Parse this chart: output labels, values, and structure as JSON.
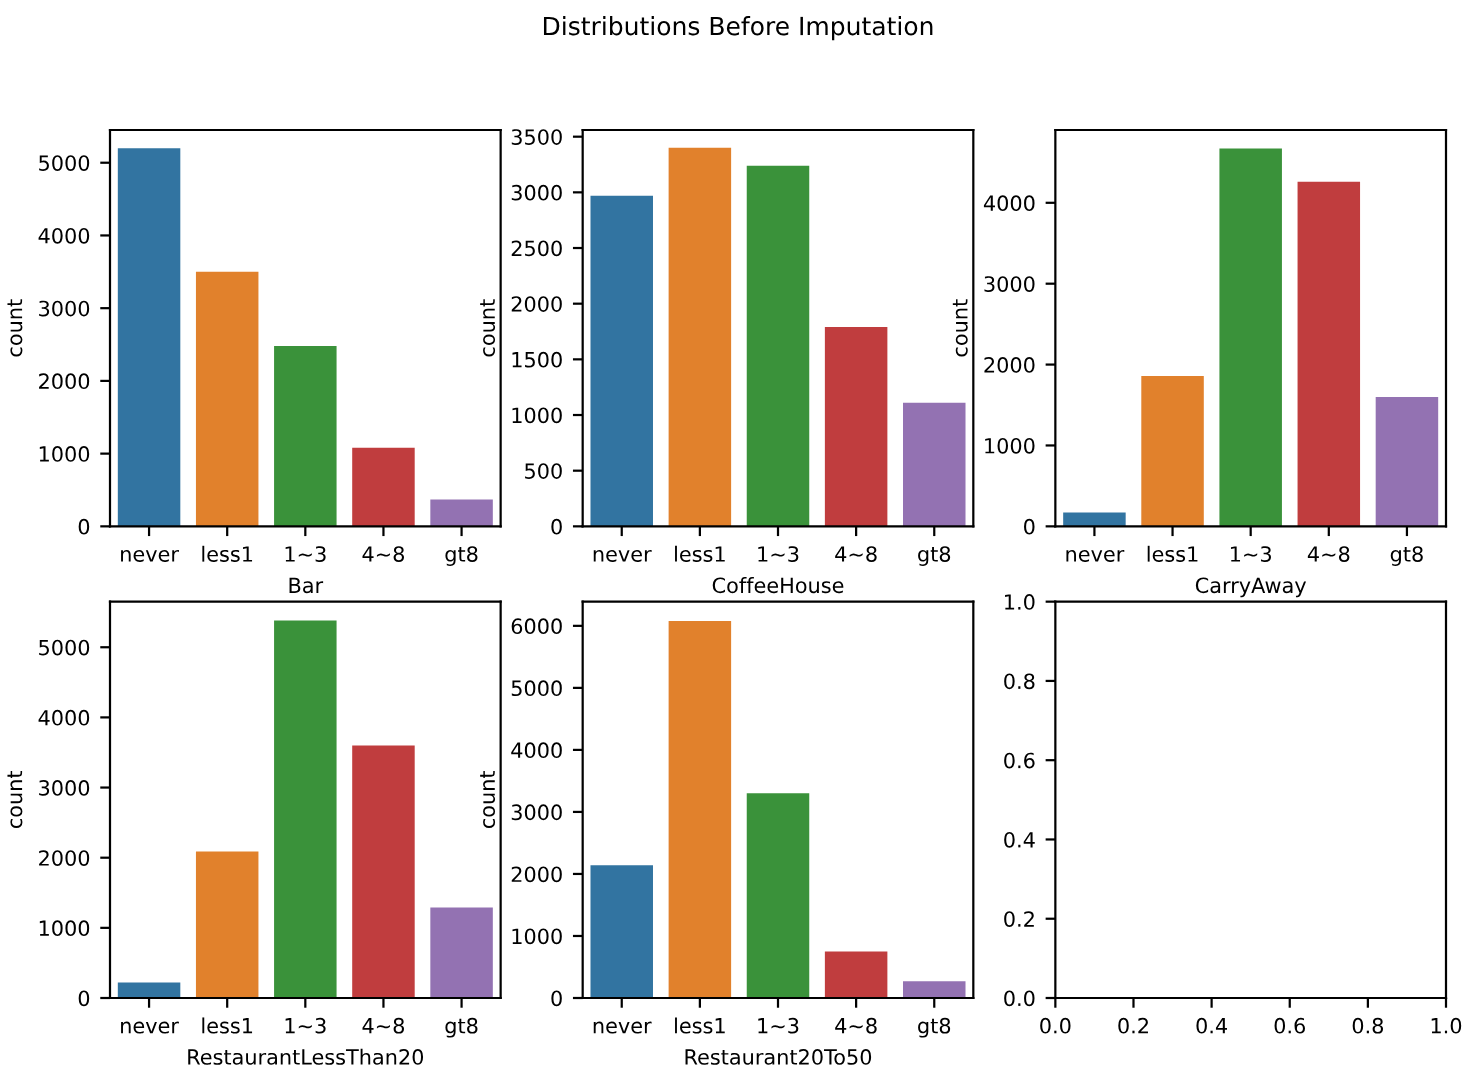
{
  "chart_data": [
    {
      "type": "bar",
      "xlabel": "Bar",
      "ylabel": "count",
      "categories": [
        "never",
        "less1",
        "1~3",
        "4~8",
        "gt8"
      ],
      "values": [
        5200,
        3500,
        2480,
        1080,
        370
      ],
      "colors": [
        "#3274a1",
        "#e1812c",
        "#3a923a",
        "#c03d3e",
        "#9372b2"
      ],
      "ylim": [
        0,
        5450
      ],
      "yticks": [
        0,
        1000,
        2000,
        3000,
        4000,
        5000
      ]
    },
    {
      "type": "bar",
      "title": "Distributions Before Imputation",
      "xlabel": "CoffeeHouse",
      "ylabel": "count",
      "categories": [
        "never",
        "less1",
        "1~3",
        "4~8",
        "gt8"
      ],
      "values": [
        2970,
        3400,
        3240,
        1790,
        1110
      ],
      "colors": [
        "#3274a1",
        "#e1812c",
        "#3a923a",
        "#c03d3e",
        "#9372b2"
      ],
      "ylim": [
        0,
        3560
      ],
      "yticks": [
        0,
        500,
        1000,
        1500,
        2000,
        2500,
        3000,
        3500
      ]
    },
    {
      "type": "bar",
      "xlabel": "CarryAway",
      "ylabel": "count",
      "categories": [
        "never",
        "less1",
        "1~3",
        "4~8",
        "gt8"
      ],
      "values": [
        170,
        1860,
        4670,
        4260,
        1600
      ],
      "colors": [
        "#3274a1",
        "#e1812c",
        "#3a923a",
        "#c03d3e",
        "#9372b2"
      ],
      "ylim": [
        0,
        4900
      ],
      "yticks": [
        0,
        1000,
        2000,
        3000,
        4000
      ]
    },
    {
      "type": "bar",
      "xlabel": "RestaurantLessThan20",
      "ylabel": "count",
      "categories": [
        "never",
        "less1",
        "1~3",
        "4~8",
        "gt8"
      ],
      "values": [
        220,
        2090,
        5380,
        3600,
        1290
      ],
      "colors": [
        "#3274a1",
        "#e1812c",
        "#3a923a",
        "#c03d3e",
        "#9372b2"
      ],
      "ylim": [
        0,
        5650
      ],
      "yticks": [
        0,
        1000,
        2000,
        3000,
        4000,
        5000
      ]
    },
    {
      "type": "bar",
      "xlabel": "Restaurant20To50",
      "ylabel": "count",
      "categories": [
        "never",
        "less1",
        "1~3",
        "4~8",
        "gt8"
      ],
      "values": [
        2140,
        6080,
        3300,
        750,
        270
      ],
      "colors": [
        "#3274a1",
        "#e1812c",
        "#3a923a",
        "#c03d3e",
        "#9372b2"
      ],
      "ylim": [
        0,
        6390
      ],
      "yticks": [
        0,
        1000,
        2000,
        3000,
        4000,
        5000,
        6000
      ]
    },
    {
      "type": "scatter",
      "xlim": [
        0,
        1
      ],
      "ylim": [
        0,
        1
      ],
      "xticks": [
        {
          "value": 0,
          "label": "0.0"
        },
        0.2,
        0.4,
        0.6,
        0.8,
        {
          "value": 1,
          "label": "1.0"
        }
      ],
      "yticks": [
        {
          "value": 0,
          "label": "0.0"
        },
        0.2,
        0.4,
        0.6,
        0.8,
        {
          "value": 1,
          "label": "1.0"
        }
      ]
    }
  ]
}
